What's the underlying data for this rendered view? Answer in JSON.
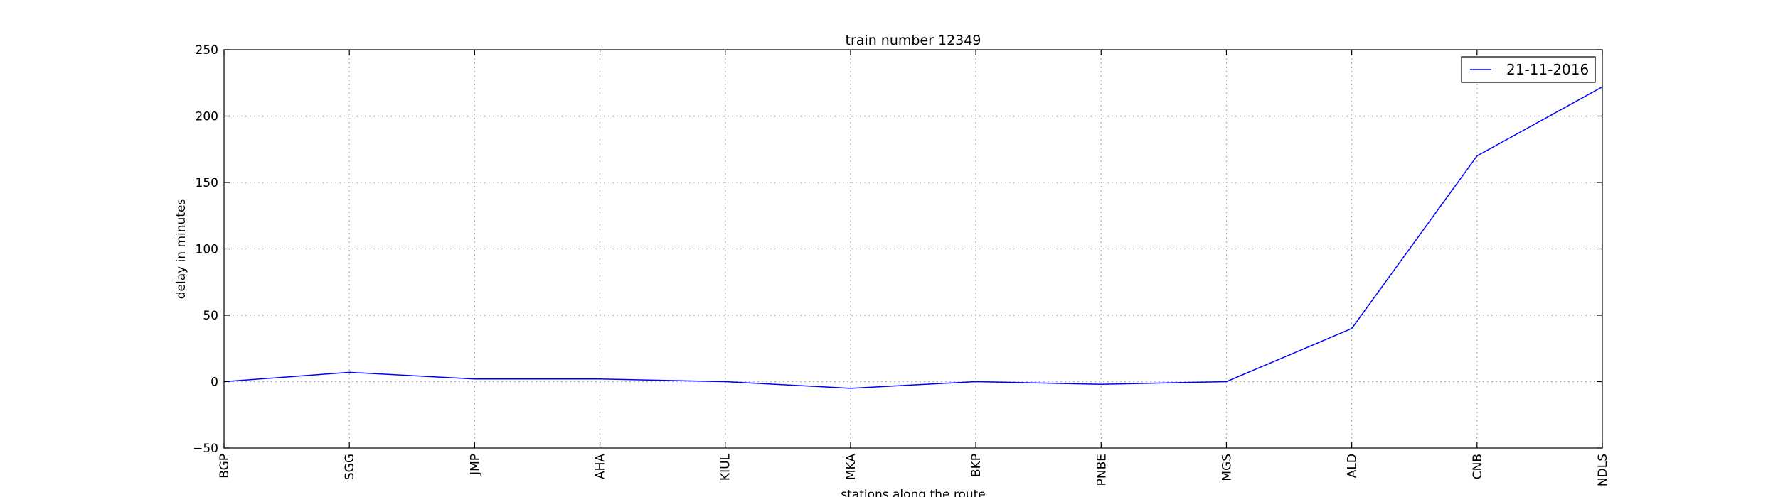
{
  "chart_data": {
    "type": "line",
    "title": "train number 12349",
    "xlabel": "stations along the route",
    "ylabel": "delay in minutes",
    "categories": [
      "BGP",
      "SGG",
      "JMP",
      "AHA",
      "KIUL",
      "MKA",
      "BKP",
      "PNBE",
      "MGS",
      "ALD",
      "CNB",
      "NDLS"
    ],
    "series": [
      {
        "name": "21-11-2016",
        "values": [
          0,
          7,
          2,
          2,
          0,
          -5,
          0,
          -2,
          0,
          40,
          170,
          222
        ]
      }
    ],
    "ylim": [
      -50,
      250
    ],
    "yticks": [
      -50,
      0,
      50,
      100,
      150,
      200,
      250
    ],
    "grid": true,
    "legend_position": "top-right",
    "colors": {
      "series": "#0000ff",
      "grid": "#b0b0b0",
      "axes": "#000000"
    }
  }
}
